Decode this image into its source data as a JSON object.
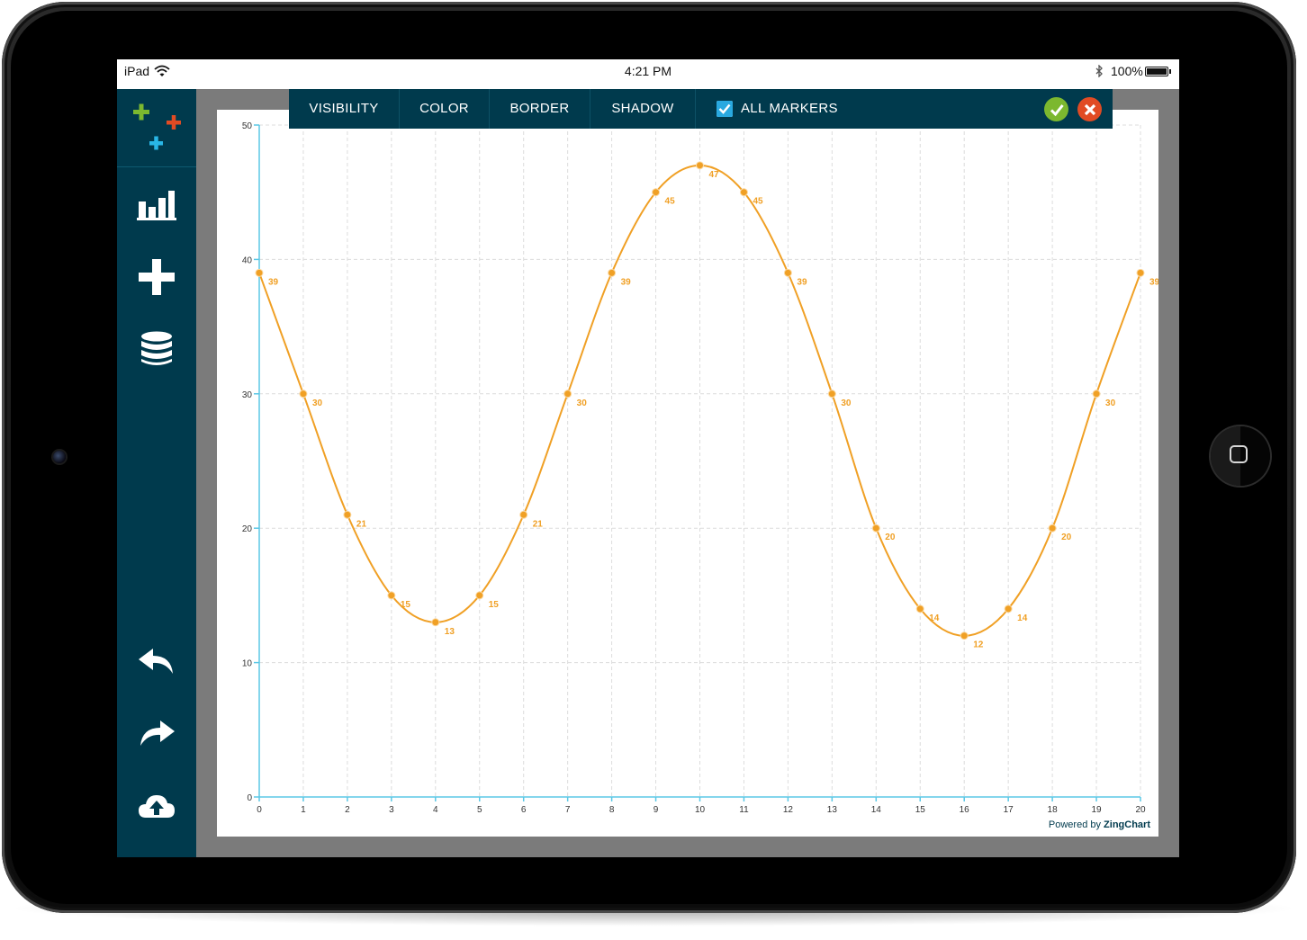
{
  "device": {
    "name": "iPad",
    "time": "4:21 PM",
    "battery": "100%",
    "icons": [
      "wifi-icon",
      "bluetooth-icon",
      "battery-icon"
    ]
  },
  "sidebar": {
    "logo": "plus-logo-icon",
    "buttons": [
      {
        "name": "chart-button",
        "icon": "bar-chart-icon"
      },
      {
        "name": "add-button",
        "icon": "plus-icon"
      },
      {
        "name": "data-button",
        "icon": "database-icon"
      },
      {
        "name": "undo-button",
        "icon": "undo-icon"
      },
      {
        "name": "redo-button",
        "icon": "redo-icon"
      },
      {
        "name": "cloud-upload-button",
        "icon": "cloud-upload-icon"
      },
      {
        "name": "settings-button",
        "icon": "gear-icon"
      }
    ]
  },
  "toolbar": {
    "visibility_label": "VISIBILITY",
    "color_label": "COLOR",
    "border_label": "BORDER",
    "shadow_label": "SHADOW",
    "all_markers_label": "ALL MARKERS",
    "all_markers_checked": true,
    "confirm_icon": "check-icon",
    "cancel_icon": "close-icon"
  },
  "colors": {
    "sidebar": "#003a4d",
    "line": "#f0a025",
    "axis": "#5bc8e6",
    "confirm": "#7cb82f",
    "cancel": "#e14b24"
  },
  "credit": {
    "prefix": "Powered by ",
    "brand": "ZingChart"
  },
  "chart_data": {
    "type": "line",
    "smooth": true,
    "x": [
      0,
      1,
      2,
      3,
      4,
      5,
      6,
      7,
      8,
      9,
      10,
      11,
      12,
      13,
      14,
      15,
      16,
      17,
      18,
      19,
      20
    ],
    "values": [
      39,
      30,
      21,
      15,
      13,
      15,
      21,
      30,
      39,
      45,
      47,
      45,
      39,
      30,
      20,
      14,
      12,
      14,
      20,
      30,
      39
    ],
    "data_labels": true,
    "markers": true,
    "xlim": [
      0,
      20
    ],
    "ylim": [
      0,
      50
    ],
    "xticks": [
      0,
      1,
      2,
      3,
      4,
      5,
      6,
      7,
      8,
      9,
      10,
      11,
      12,
      13,
      14,
      15,
      16,
      17,
      18,
      19,
      20
    ],
    "yticks": [
      0,
      10,
      20,
      30,
      40,
      50
    ],
    "grid": true,
    "title": "",
    "xlabel": "",
    "ylabel": ""
  }
}
